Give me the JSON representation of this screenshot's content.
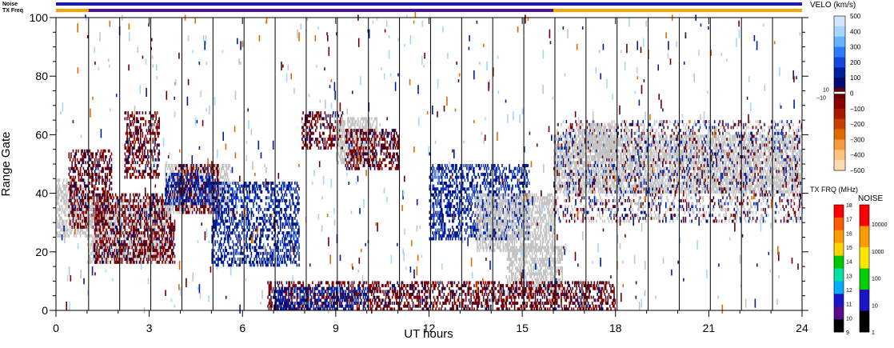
{
  "chart_data": {
    "type": "heatmap",
    "title": "",
    "xlabel": "UT hours",
    "ylabel": "Range Gate",
    "xlim": [
      0,
      24
    ],
    "ylim": [
      0,
      100
    ],
    "x_ticks": [
      "0",
      "3",
      "6",
      "9",
      "12",
      "15",
      "18",
      "21",
      "24"
    ],
    "y_ticks": [
      "0",
      "20",
      "40",
      "60",
      "80",
      "100"
    ],
    "top_bars": [
      {
        "label": "Noise",
        "segments": [
          {
            "from": 0,
            "to": 24,
            "color": "#1a16c8"
          }
        ]
      },
      {
        "label": "TX Freq",
        "segments": [
          {
            "from": 0,
            "to": 1.05,
            "color": "#f5a400"
          },
          {
            "from": 1.05,
            "to": 16.0,
            "color": "#4b1399"
          },
          {
            "from": 16.0,
            "to": 24,
            "color": "#f5a400"
          }
        ]
      }
    ],
    "scan_boundaries_ut": [
      1.05,
      2.05,
      3.05,
      4.05,
      5.05,
      6.05,
      7.05,
      8.05,
      9.05,
      10.05,
      11.05,
      12.05,
      13.05,
      14.05,
      15.05,
      16.05,
      17.05,
      18.05,
      19.05,
      20.05,
      21.05,
      22.05,
      23.05
    ],
    "velocity_colorbar": {
      "title": "VELO (km/s)",
      "labels": [
        "500",
        "400",
        "300",
        "200",
        "100",
        "0",
        "−100",
        "−200",
        "−300",
        "−400",
        "−500"
      ],
      "small_labels": [
        "10",
        "−10"
      ],
      "colors": [
        "#cfe8ff",
        "#a4d6ff",
        "#64b4ff",
        "#2b7dff",
        "#1446e0",
        "#001f9c",
        "#000c74",
        "#6b0000",
        "#8a0000",
        "#a81800",
        "#c84000",
        "#e06c00",
        "#f59a3c",
        "#ffc27a",
        "#ffdcb0"
      ]
    },
    "txfreq_colorbar": {
      "title": "TX FRQ (MHz)",
      "labels": [
        "18",
        "17",
        "16",
        "15",
        "14",
        "13",
        "12",
        "11",
        "10",
        "9"
      ],
      "colors": [
        "#ff0000",
        "#ff5a00",
        "#ff9a00",
        "#ffd200",
        "#00c800",
        "#00e0a0",
        "#00b0ff",
        "#1a16c8",
        "#5a0a8c",
        "#000000"
      ]
    },
    "noise_colorbar": {
      "title": "NOISE",
      "labels": [
        "10000",
        "1000",
        "100",
        "10",
        "1"
      ],
      "colors": [
        "#ff0000",
        "#ff9a00",
        "#ffe600",
        "#00d000",
        "#1a16c8",
        "#000000"
      ]
    },
    "regions": [
      {
        "kind": "ground",
        "t0": 0.0,
        "t1": 1.0,
        "g0": 25,
        "g1": 45
      },
      {
        "kind": "negative",
        "t0": 0.4,
        "t1": 1.8,
        "g0": 28,
        "g1": 55
      },
      {
        "kind": "ground",
        "t0": 1.0,
        "t1": 3.6,
        "g0": 16,
        "g1": 38
      },
      {
        "kind": "negative",
        "t0": 1.2,
        "t1": 3.8,
        "g0": 16,
        "g1": 40
      },
      {
        "kind": "negative",
        "t0": 2.2,
        "t1": 3.3,
        "g0": 45,
        "g1": 68
      },
      {
        "kind": "ground",
        "t0": 3.5,
        "t1": 5.6,
        "g0": 33,
        "g1": 50
      },
      {
        "kind": "negative",
        "t0": 3.8,
        "t1": 5.2,
        "g0": 33,
        "g1": 50
      },
      {
        "kind": "positive",
        "t0": 3.5,
        "t1": 5.0,
        "g0": 36,
        "g1": 47
      },
      {
        "kind": "positive",
        "t0": 5.0,
        "t1": 7.8,
        "g0": 15,
        "g1": 44
      },
      {
        "kind": "negative",
        "t0": 7.9,
        "t1": 9.2,
        "g0": 55,
        "g1": 68
      },
      {
        "kind": "ground",
        "t0": 9.0,
        "t1": 10.3,
        "g0": 50,
        "g1": 66
      },
      {
        "kind": "negative",
        "t0": 9.3,
        "t1": 11.0,
        "g0": 48,
        "g1": 62
      },
      {
        "kind": "positive",
        "t0": 12.0,
        "t1": 15.2,
        "g0": 24,
        "g1": 50
      },
      {
        "kind": "ground",
        "t0": 13.5,
        "t1": 16.0,
        "g0": 20,
        "g1": 40
      },
      {
        "kind": "ground",
        "t0": 14.5,
        "t1": 16.3,
        "g0": 5,
        "g1": 22
      },
      {
        "kind": "negative",
        "t0": 6.8,
        "t1": 18.0,
        "g0": 0,
        "g1": 10
      },
      {
        "kind": "positive",
        "t0": 7.0,
        "t1": 10.0,
        "g0": 0,
        "g1": 8
      },
      {
        "kind": "ground",
        "t0": 16.0,
        "t1": 24.0,
        "g0": 40,
        "g1": 60
      },
      {
        "kind": "mixed",
        "t0": 16.0,
        "t1": 24.0,
        "g0": 30,
        "g1": 65
      },
      {
        "kind": "ground",
        "t0": 16.8,
        "t1": 18.0,
        "g0": 52,
        "g1": 64
      }
    ]
  }
}
